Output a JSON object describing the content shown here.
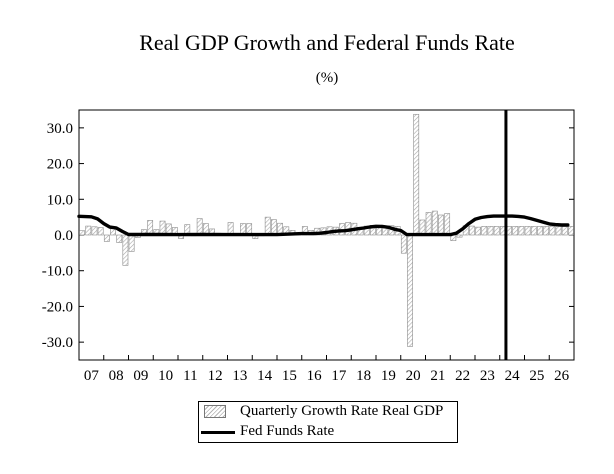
{
  "header": {
    "title": "Real GDP Growth and Federal Funds Rate",
    "subtitle": "(%)"
  },
  "legend": {
    "gdp_label": "Quarterly Growth Rate Real GDP",
    "ffr_label": "Fed Funds Rate"
  },
  "colors": {
    "line": "#000000",
    "bar_fill": "#d9d9d9",
    "bar_stroke": "#8c8c8c",
    "vline": "#000000"
  },
  "chart_data": {
    "type": "bar",
    "title": "Real GDP Growth and Federal Funds Rate",
    "subtitle": "(%)",
    "xlabel": "",
    "ylabel": "",
    "ylim": [
      -35,
      35
    ],
    "yticks": [
      30,
      20,
      10,
      0,
      -10,
      -20,
      -30
    ],
    "ytick_labels": [
      "30.0",
      "20.0",
      "10.0",
      "0.0",
      "-10.0",
      "-20.0",
      "-30.0"
    ],
    "x_start": 2007.0,
    "x_end": 2027.0,
    "x_tick_labels": [
      "07",
      "08",
      "09",
      "10",
      "11",
      "12",
      "13",
      "14",
      "15",
      "16",
      "17",
      "18",
      "19",
      "20",
      "21",
      "22",
      "23",
      "24",
      "25",
      "26"
    ],
    "forecast_marker_year": 2024.25,
    "series": [
      {
        "name": "Quarterly Growth Rate Real GDP",
        "type": "bar",
        "start": 2007.0,
        "step": 0.25,
        "values": [
          1.2,
          2.5,
          2.3,
          2.1,
          -1.8,
          2.0,
          -2.1,
          -8.5,
          -4.6,
          -0.7,
          1.5,
          4.1,
          1.5,
          3.9,
          3.1,
          2.1,
          -1.0,
          2.9,
          -0.1,
          4.6,
          3.2,
          1.7,
          0.5,
          0.1,
          3.5,
          0.5,
          3.2,
          3.2,
          -1.0,
          -0.1,
          5.0,
          4.3,
          3.3,
          2.3,
          1.3,
          0.6,
          2.4,
          1.3,
          1.9,
          2.0,
          2.3,
          2.2,
          3.2,
          3.5,
          3.3,
          2.1,
          2.5,
          2.7,
          2.4,
          2.4,
          2.6,
          2.4,
          -5.1,
          -31.2,
          33.8,
          4.2,
          6.3,
          6.7,
          5.6,
          6.0,
          -1.6,
          -0.6,
          2.6,
          2.5,
          2.2,
          2.4,
          2.4,
          2.4,
          2.4,
          2.4,
          2.4,
          2.4,
          2.4,
          2.4,
          2.4,
          2.4,
          2.4,
          2.4,
          2.4,
          2.4
        ]
      },
      {
        "name": "Fed Funds Rate",
        "type": "line",
        "x": [
          2007.0,
          2007.5,
          2007.75,
          2008.0,
          2008.25,
          2008.5,
          2008.75,
          2009.0,
          2010.0,
          2011.0,
          2012.0,
          2013.0,
          2014.0,
          2015.0,
          2015.75,
          2016.0,
          2016.5,
          2016.75,
          2017.0,
          2017.25,
          2017.5,
          2017.75,
          2018.0,
          2018.25,
          2018.5,
          2018.75,
          2019.0,
          2019.25,
          2019.5,
          2019.75,
          2020.0,
          2020.25,
          2021.0,
          2022.0,
          2022.25,
          2022.5,
          2022.75,
          2023.0,
          2023.25,
          2023.5,
          2023.75,
          2024.0,
          2024.25,
          2024.5,
          2024.75,
          2025.0,
          2025.25,
          2025.5,
          2025.75,
          2026.0,
          2026.25,
          2026.5,
          2026.75
        ],
        "values": [
          5.25,
          5.1,
          4.5,
          3.2,
          2.2,
          2.0,
          1.0,
          0.15,
          0.15,
          0.1,
          0.15,
          0.1,
          0.1,
          0.12,
          0.35,
          0.4,
          0.4,
          0.5,
          0.7,
          0.95,
          1.15,
          1.2,
          1.45,
          1.75,
          1.95,
          2.25,
          2.45,
          2.4,
          2.15,
          1.6,
          1.25,
          0.1,
          0.1,
          0.1,
          0.5,
          1.7,
          3.2,
          4.4,
          4.9,
          5.15,
          5.3,
          5.3,
          5.3,
          5.3,
          5.2,
          5.0,
          4.6,
          4.1,
          3.6,
          3.1,
          2.9,
          2.8,
          2.8
        ]
      }
    ]
  }
}
